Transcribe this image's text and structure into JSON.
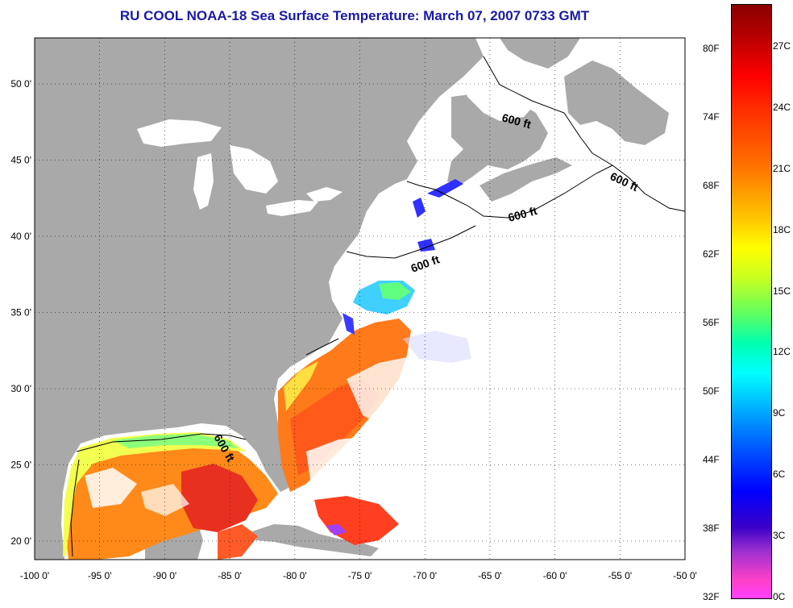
{
  "title": "RU COOL  NOAA-18  Sea Surface Temperature:  March 07, 2007 0733 GMT",
  "contour_label": "600 ft",
  "x_ticks": [
    "-100 0'",
    "-95 0'",
    "-90 0'",
    "-85 0'",
    "-80 0'",
    "-75 0'",
    "-70 0'",
    "-65 0'",
    "-60 0'",
    "-55 0'",
    "-50 0'"
  ],
  "y_ticks": [
    "50 0'",
    "45 0'",
    "40 0'",
    "35 0'",
    "30 0'",
    "25 0'",
    "20 0'"
  ],
  "colorbar": {
    "fahrenheit": [
      "80F",
      "74F",
      "68F",
      "62F",
      "56F",
      "50F",
      "44F",
      "38F",
      "32F"
    ],
    "celsius": [
      "27C",
      "24C",
      "21C",
      "18C",
      "15C",
      "12C",
      "9C",
      "6C",
      "3C",
      "0C"
    ]
  },
  "colors": {
    "land": "#a9a9a9",
    "water_no_data": "#ffffff",
    "title": "#1a1aa6"
  }
}
